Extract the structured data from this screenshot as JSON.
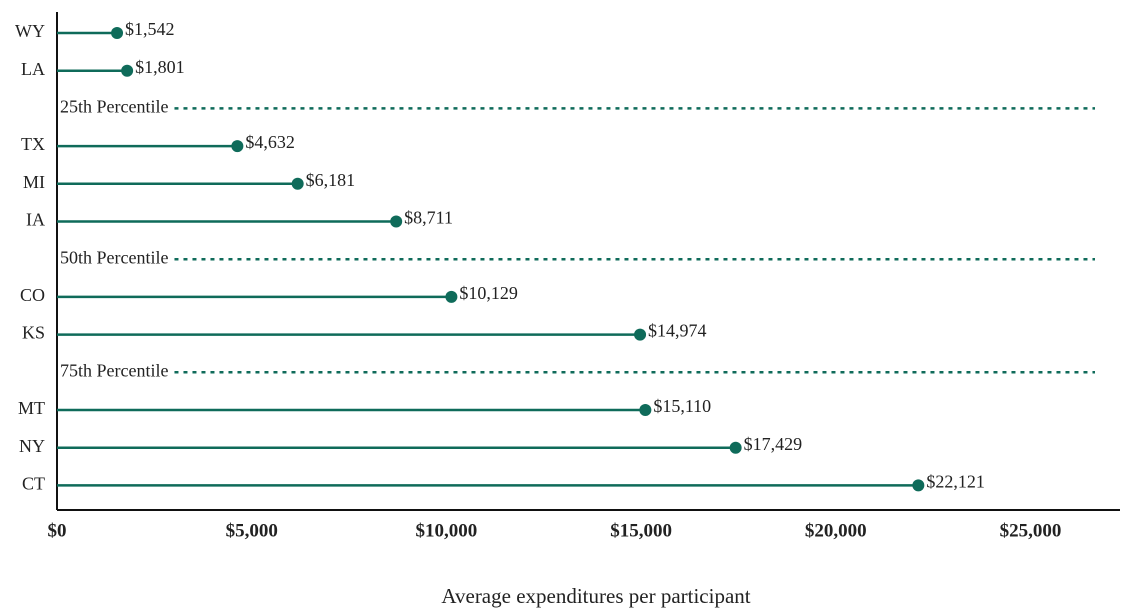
{
  "chart_data": {
    "type": "lollipop",
    "x_label": "Average expenditures per participant",
    "categories": [
      "WY",
      "LA",
      "25th Percentile",
      "TX",
      "MI",
      "IA",
      "50th Percentile",
      "CO",
      "KS",
      "75th Percentile",
      "MT",
      "NY",
      "CT"
    ],
    "values": [
      1542,
      1801,
      null,
      4632,
      6181,
      8711,
      null,
      10129,
      14974,
      null,
      15110,
      17429,
      22121
    ],
    "value_labels": [
      "$1,542",
      "$1,801",
      null,
      "$4,632",
      "$6,181",
      "$8,711",
      null,
      "$10,129",
      "$14,974",
      null,
      "$15,110",
      "$17,429",
      "$22,121"
    ],
    "color": "#0f6b5a",
    "xlim": [
      0,
      27300
    ],
    "xticks": [
      {
        "value": 0,
        "label": "$0"
      },
      {
        "value": 5000,
        "label": "$5,000"
      },
      {
        "value": 10000,
        "label": "$10,000"
      },
      {
        "value": 15000,
        "label": "$15,000"
      },
      {
        "value": 20000,
        "label": "$20,000"
      },
      {
        "value": 25000,
        "label": "$25,000"
      }
    ]
  }
}
